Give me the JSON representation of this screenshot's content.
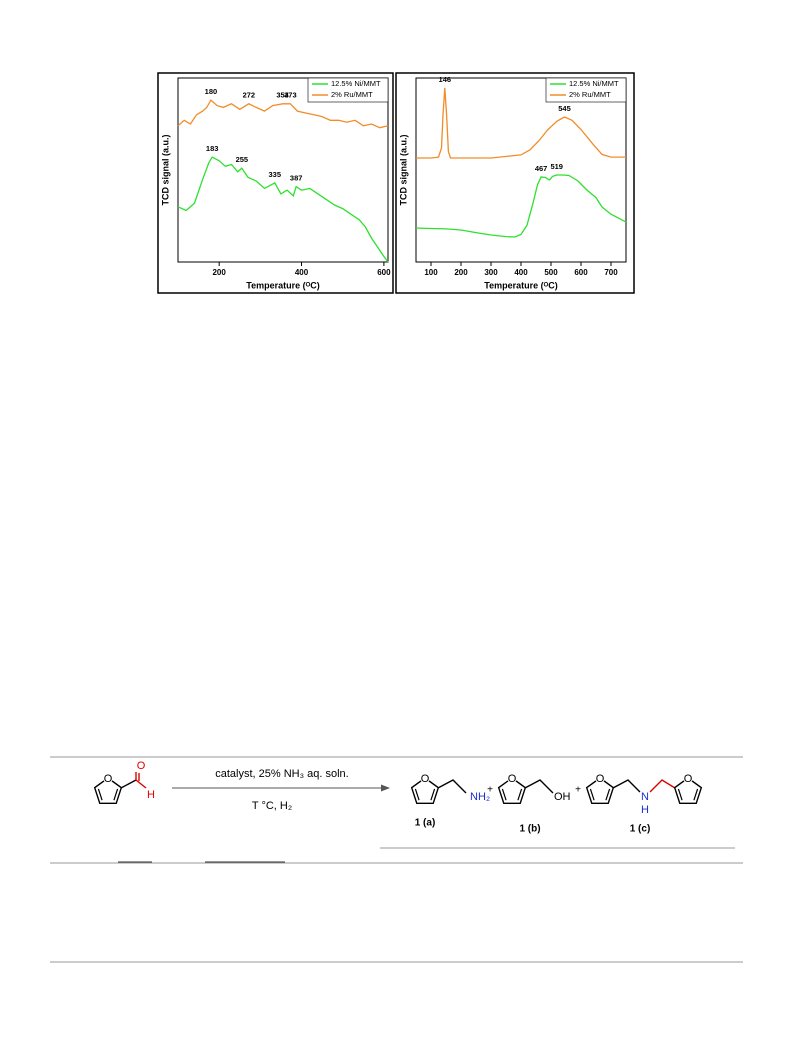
{
  "chart_data": [
    {
      "type": "line",
      "y_label": "TCD signal (a.u.)",
      "x_label": "Temperature (ᴼC)",
      "xlim": [
        100,
        610
      ],
      "xticks": [
        200,
        400,
        600
      ],
      "ylim": [
        0,
        100
      ],
      "legend": "upper right",
      "series": [
        {
          "name": "12.5% Ni/MMT",
          "color": "#2ee02e",
          "x": [
            100,
            120,
            140,
            160,
            175,
            183,
            200,
            215,
            230,
            245,
            255,
            270,
            290,
            310,
            335,
            350,
            365,
            380,
            387,
            400,
            420,
            440,
            460,
            480,
            500,
            520,
            540,
            555,
            570,
            585,
            600,
            610
          ],
          "values": [
            30,
            28,
            32,
            45,
            54,
            57,
            55,
            52,
            53,
            49,
            51,
            46,
            44,
            40,
            43,
            37,
            39,
            36,
            41,
            39,
            40,
            37,
            34,
            31,
            29,
            26,
            23,
            19,
            13,
            8,
            3,
            0
          ],
          "peaks": [
            {
              "x": 183,
              "y": 57
            },
            {
              "x": 255,
              "y": 51
            },
            {
              "x": 335,
              "y": 43
            },
            {
              "x": 387,
              "y": 41
            }
          ]
        },
        {
          "name": "2% Ru/MMT",
          "color": "#f28c28",
          "x": [
            100,
            115,
            130,
            145,
            160,
            170,
            180,
            195,
            210,
            230,
            250,
            272,
            290,
            310,
            330,
            354,
            373,
            390,
            410,
            430,
            450,
            470,
            490,
            510,
            530,
            550,
            570,
            590,
            610
          ],
          "values": [
            74,
            77,
            75,
            80,
            82,
            84,
            88,
            85,
            84,
            86,
            83,
            86,
            84,
            82,
            85,
            86,
            86,
            82,
            81,
            80,
            79,
            77,
            77,
            76,
            77,
            74,
            75,
            73,
            74
          ],
          "peaks": [
            {
              "x": 180,
              "y": 88
            },
            {
              "x": 272,
              "y": 86
            },
            {
              "x": 354,
              "y": 86
            },
            {
              "x": 373,
              "y": 86
            }
          ]
        }
      ]
    },
    {
      "type": "line",
      "y_label": "TCD signal (a.u.)",
      "x_label": "Temperature (ᴼC)",
      "xlim": [
        50,
        750
      ],
      "xticks": [
        100,
        200,
        300,
        400,
        500,
        600,
        700
      ],
      "ylim": [
        0,
        100
      ],
      "legend": "upper right",
      "series": [
        {
          "name": "12.5% Ni/MMT",
          "color": "#2ee02e",
          "x": [
            50,
            100,
            150,
            200,
            250,
            300,
            350,
            380,
            400,
            420,
            440,
            455,
            467,
            480,
            495,
            505,
            519,
            540,
            560,
            590,
            620,
            650,
            670,
            700,
            730,
            750
          ],
          "values": [
            18.5,
            18.2,
            18,
            17.4,
            16,
            14.7,
            13.8,
            13.6,
            15,
            20,
            32,
            42,
            46.2,
            46,
            44.6,
            46.5,
            47.3,
            47.3,
            47,
            44,
            39.1,
            35,
            29.9,
            26,
            23.5,
            21.7
          ],
          "peaks": [
            {
              "x": 467,
              "y": 46.2
            },
            {
              "x": 519,
              "y": 47.3
            }
          ]
        },
        {
          "name": "2% Ru/MMT",
          "color": "#f28c28",
          "x": [
            50,
            100,
            125,
            135,
            140,
            146,
            152,
            158,
            165,
            200,
            300,
            400,
            430,
            460,
            490,
            520,
            545,
            570,
            600,
            640,
            670,
            700,
            750
          ],
          "values": [
            56.5,
            56.5,
            57,
            62,
            80,
            94.6,
            80,
            60,
            56.5,
            56.5,
            56.5,
            58.2,
            61,
            66,
            72,
            76.5,
            78.8,
            77,
            72,
            64,
            58.5,
            57,
            57
          ],
          "peaks": [
            {
              "x": 146,
              "y": 94.6
            },
            {
              "x": 545,
              "y": 78.8
            }
          ]
        }
      ]
    }
  ],
  "scheme": {
    "aldehyde_o": "O",
    "aldehyde_h": "H",
    "reagents": "catalyst, 25% NH₃ aq. soln.",
    "conditions": "T °C,  H₂",
    "plus": "+",
    "ring_o": "O",
    "amine": "NH₂",
    "hydroxyl": "OH",
    "imine_n": "N",
    "imine_h": "H",
    "labels": [
      "1 (a)",
      "1 (b)",
      "1 (c)"
    ]
  }
}
